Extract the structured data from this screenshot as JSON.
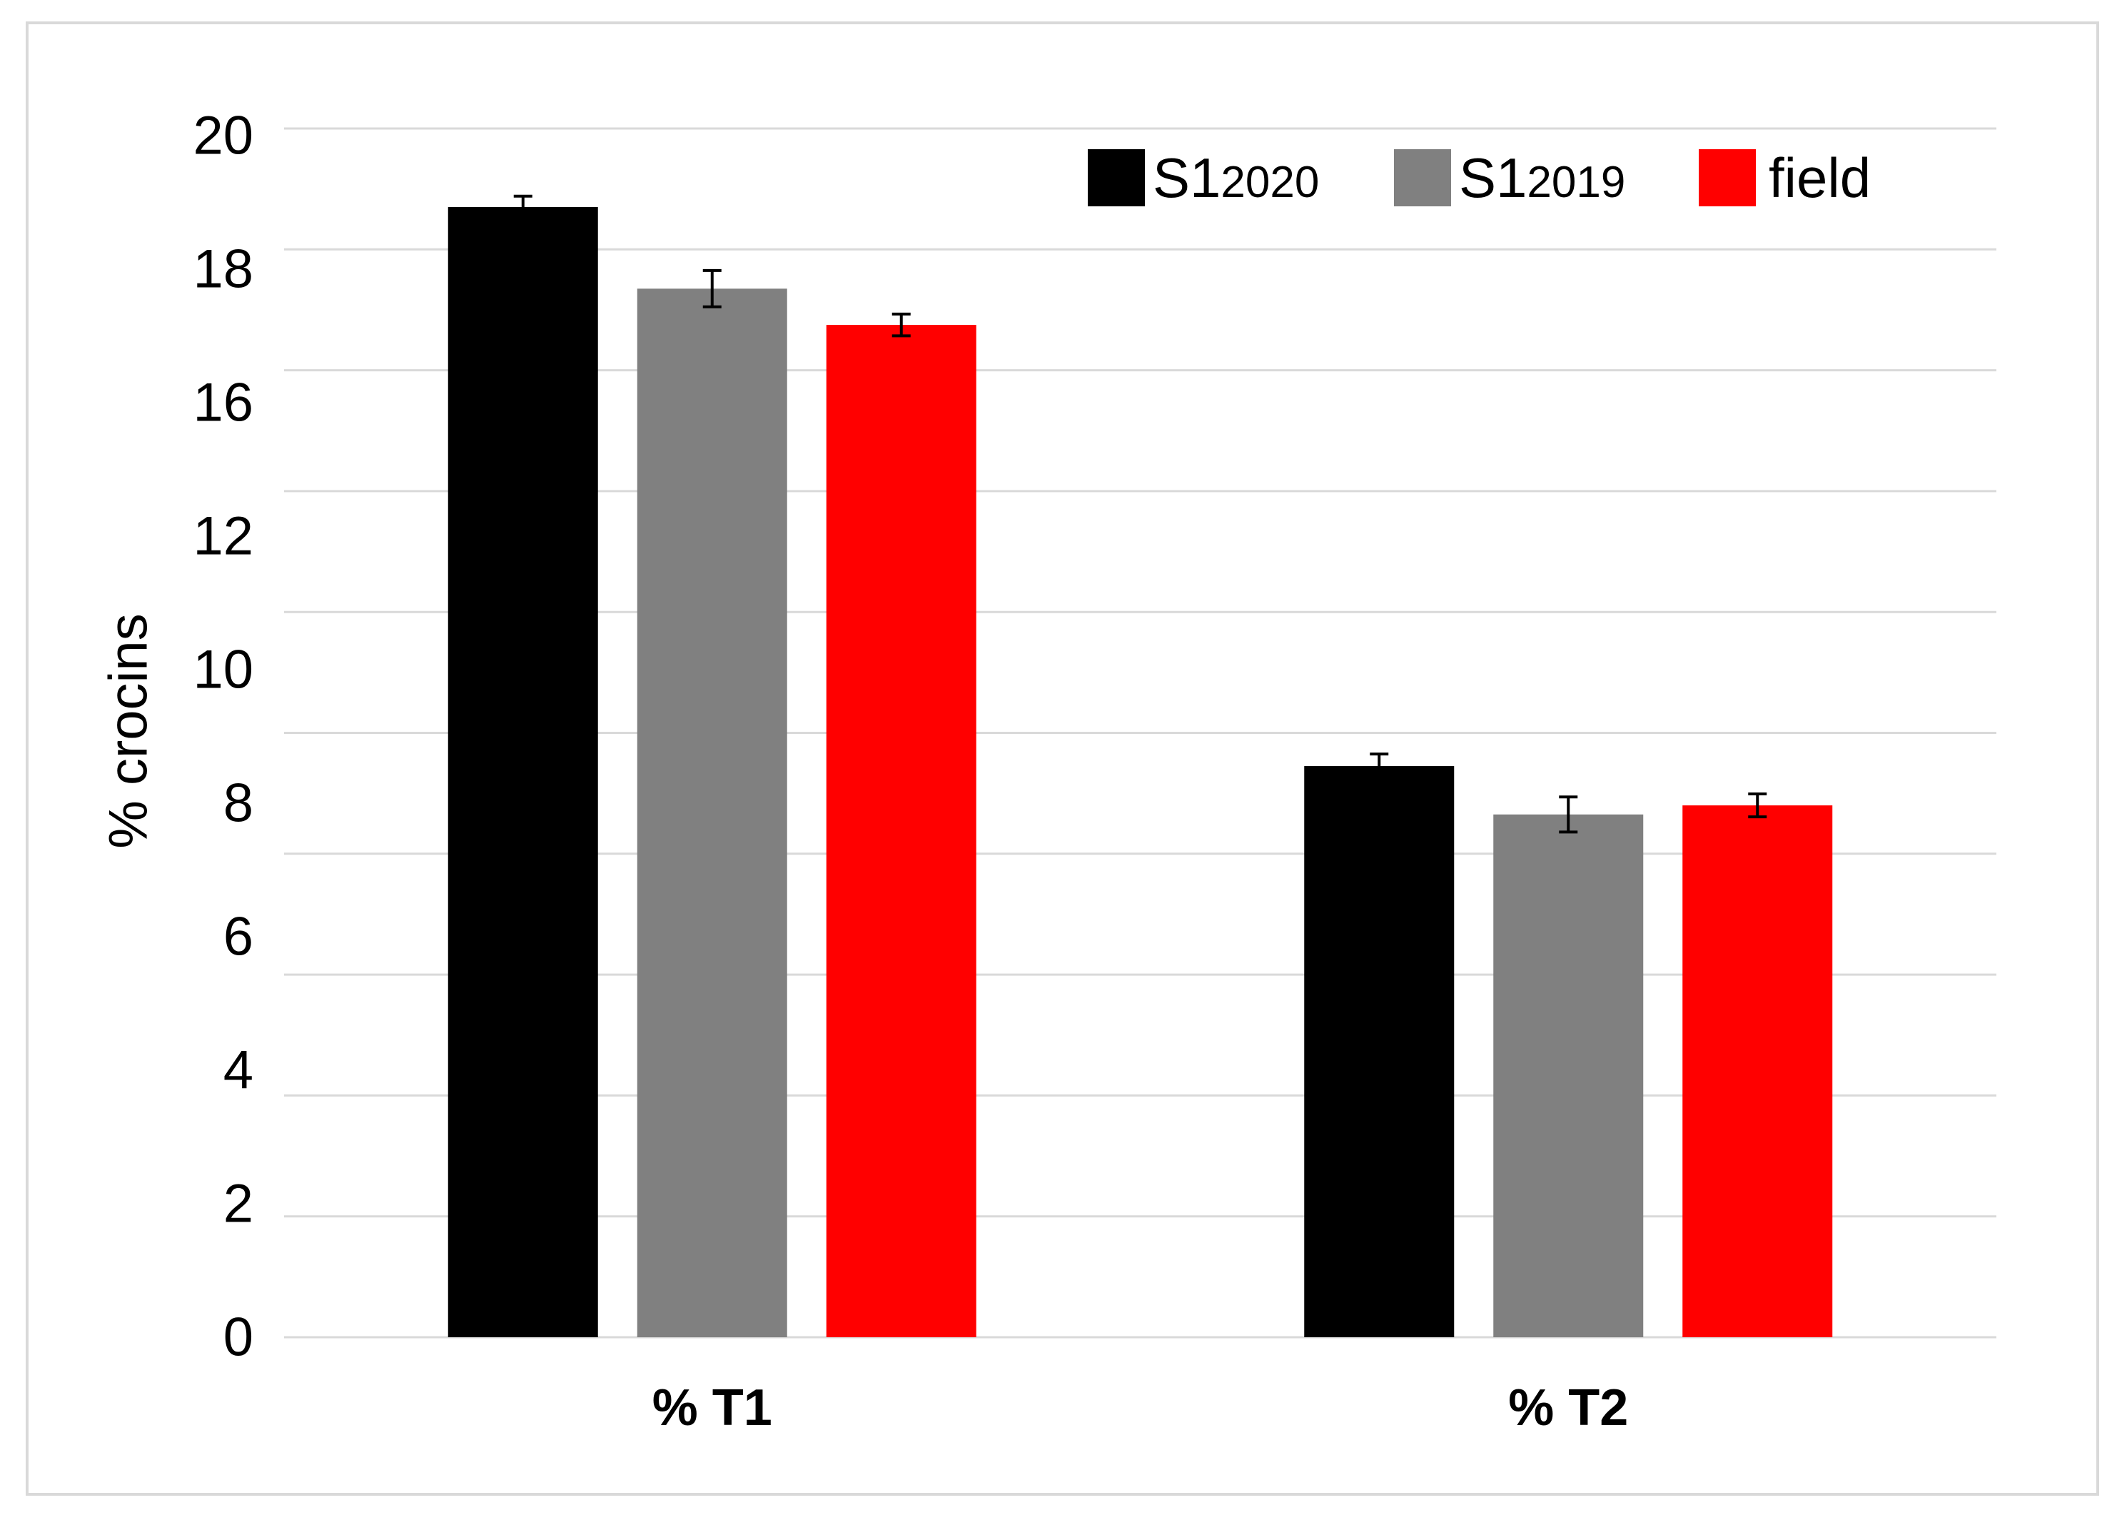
{
  "chart_data": {
    "type": "bar",
    "title": "",
    "xlabel": "",
    "ylabel": "% crocins",
    "categories": [
      "% T1",
      "% T2"
    ],
    "ylim": [
      0,
      20
    ],
    "yticks": [
      "20",
      "18",
      "16",
      "12",
      "10",
      "8",
      "6",
      "4",
      "2",
      "0"
    ],
    "grid": true,
    "grid_step": 2,
    "grid_color": "#d9d9d9",
    "frame_color": "#d9d9d9",
    "error_bar_color": "#000000",
    "legend": "top-right",
    "series": [
      {
        "name": "S1",
        "name_sub": "2020",
        "color": "#000000",
        "values": [
          18.7,
          9.45
        ],
        "errors": [
          0.18,
          0.2
        ]
      },
      {
        "name": "S1",
        "name_sub": "2019",
        "color": "#808080",
        "values": [
          17.35,
          8.65
        ],
        "errors": [
          0.3,
          0.29
        ]
      },
      {
        "name": "field",
        "color": "#ff0000",
        "values": [
          16.75,
          8.8
        ],
        "errors": [
          0.18,
          0.19
        ]
      }
    ]
  }
}
